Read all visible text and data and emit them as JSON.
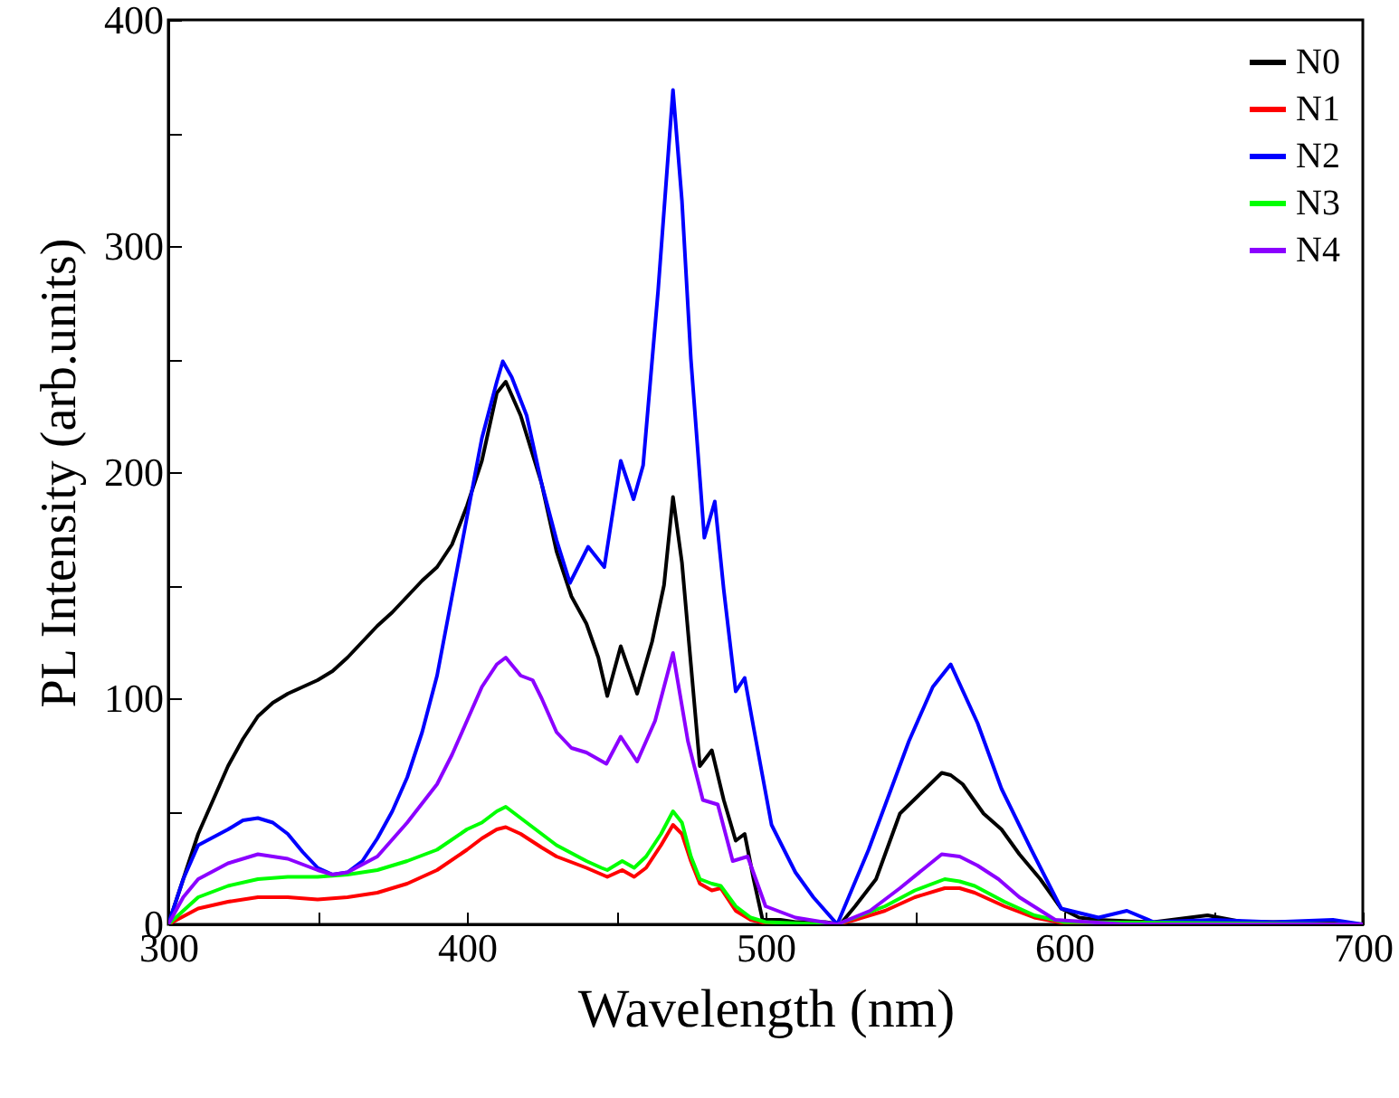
{
  "chart_data": {
    "type": "line",
    "xlabel": "Wavelength (nm)",
    "ylabel": "PL Intensity (arb.units)",
    "xlim": [
      300,
      700
    ],
    "ylim": [
      0,
      400
    ],
    "xticks": [
      300,
      {
        "value": 350,
        "label": null
      },
      400,
      {
        "value": 450,
        "label": null
      },
      500,
      {
        "value": 550,
        "label": null
      },
      600,
      {
        "value": 650,
        "label": null
      },
      700
    ],
    "yticks": [
      0,
      {
        "value": 50,
        "label": null
      },
      100,
      {
        "value": 150,
        "label": null
      },
      200,
      {
        "value": 250,
        "label": null
      },
      300,
      {
        "value": 350,
        "label": null
      },
      400
    ],
    "grid": false,
    "legend": "top right",
    "line_style": "solid",
    "marker": "none",
    "series": [
      {
        "name": "N0",
        "color": "#000000",
        "x": [
          300,
          305,
          310,
          315,
          320,
          325,
          330,
          335,
          340,
          345,
          350,
          355,
          360,
          365,
          370,
          375,
          380,
          385,
          390,
          395,
          400,
          405,
          410,
          413,
          418,
          425,
          430,
          435,
          440,
          444,
          447,
          451.5,
          457,
          462,
          466,
          469,
          472,
          475,
          478,
          482,
          486,
          490,
          493,
          496,
          499,
          505,
          510,
          520,
          525,
          530,
          537,
          545,
          552,
          559,
          562,
          566,
          573,
          579,
          585,
          592,
          599,
          605,
          611,
          630,
          648,
          660,
          680,
          700
        ],
        "values": [
          0,
          20,
          40,
          55,
          70,
          82,
          92,
          98,
          102,
          105,
          108,
          112,
          118,
          125,
          132,
          138,
          145,
          152,
          158,
          168,
          185,
          205,
          235,
          240,
          225,
          195,
          165,
          145,
          133,
          118,
          101,
          123,
          102,
          125,
          150,
          189,
          160,
          115,
          70,
          77,
          55,
          37,
          40,
          20,
          2,
          2,
          1,
          1,
          0,
          8,
          20,
          49,
          58,
          67,
          66,
          62,
          49,
          42,
          31,
          20,
          7,
          3,
          2,
          1,
          4,
          1,
          1,
          0
        ]
      },
      {
        "name": "N1",
        "color": "#ff0000",
        "x": [
          300,
          310,
          320,
          330,
          340,
          350,
          360,
          370,
          380,
          390,
          400,
          405,
          410,
          413,
          418,
          425,
          430,
          440,
          447,
          452,
          456,
          460,
          465,
          469,
          472,
          475,
          478,
          482,
          485,
          490,
          495,
          500,
          520,
          524,
          530,
          540,
          550,
          560,
          565,
          570,
          580,
          590,
          600,
          700
        ],
        "values": [
          0,
          7,
          10,
          12,
          12,
          11,
          12,
          14,
          18,
          24,
          33,
          38,
          42,
          43,
          40,
          34,
          30,
          25,
          21,
          24,
          21,
          25,
          35,
          44,
          40,
          28,
          18,
          15,
          16,
          6,
          2,
          0.5,
          0,
          0,
          2,
          6,
          12,
          16,
          16,
          14,
          8,
          3,
          0.5,
          0
        ]
      },
      {
        "name": "N2",
        "color": "#0000ff",
        "x": [
          300,
          305,
          310,
          320,
          325,
          330,
          335,
          340,
          345,
          350,
          355,
          360,
          365,
          370,
          375,
          380,
          385,
          390,
          395,
          400,
          405,
          410,
          412,
          415,
          420,
          425,
          430,
          434.5,
          440.6,
          446,
          451.5,
          455.8,
          459,
          464,
          469,
          472,
          475,
          479.5,
          483,
          486,
          490,
          493,
          496,
          502,
          510,
          516,
          524,
          534.5,
          548,
          556,
          562,
          571,
          579,
          589,
          599,
          611.5,
          621,
          630,
          650,
          670,
          690,
          700
        ],
        "values": [
          0,
          20,
          35,
          42,
          46,
          47,
          45,
          40,
          32,
          25,
          22,
          23,
          28,
          38,
          50,
          65,
          85,
          110,
          145,
          180,
          215,
          240,
          249,
          242,
          225,
          195,
          170,
          151,
          167,
          158,
          205,
          188,
          203,
          280,
          369,
          320,
          250,
          171,
          187,
          148,
          103,
          109,
          87,
          44,
          23,
          12,
          0,
          33,
          81,
          105,
          115,
          89,
          60,
          33,
          7,
          3,
          6,
          1,
          2,
          1,
          2,
          0
        ]
      },
      {
        "name": "N3",
        "color": "#00ff00",
        "x": [
          300,
          310,
          320,
          330,
          340,
          350,
          360,
          370,
          380,
          390,
          400,
          405,
          410,
          413,
          418,
          425,
          430,
          440,
          445,
          447,
          452,
          456,
          460,
          465,
          469,
          472,
          475,
          478,
          482,
          485,
          490,
          495,
          500,
          520,
          524,
          530,
          540,
          550,
          560,
          565,
          570,
          580,
          590,
          600,
          700
        ],
        "values": [
          0,
          12,
          17,
          20,
          21,
          21,
          22,
          24,
          28,
          33,
          42,
          45,
          50,
          52,
          47,
          40,
          35,
          28,
          25,
          24,
          28,
          25,
          30,
          40,
          50,
          45,
          30,
          20,
          18,
          17,
          8,
          3,
          1,
          0,
          0,
          3,
          8,
          15,
          20,
          19,
          17,
          10,
          4,
          1,
          0
        ]
      },
      {
        "name": "N4",
        "color": "#8b00ff",
        "x": [
          300,
          305,
          310,
          320,
          330,
          340,
          350,
          355,
          360,
          370,
          380,
          390,
          395,
          400,
          405,
          410,
          413,
          418,
          422,
          425,
          430,
          435,
          440,
          446.7,
          451.5,
          457,
          463,
          469,
          474,
          479,
          484,
          489,
          494,
          500,
          510,
          524,
          535,
          545,
          559,
          565,
          571,
          578,
          585,
          597,
          620,
          700
        ],
        "values": [
          0,
          12,
          20,
          27,
          31,
          29,
          24,
          22,
          23,
          30,
          45,
          62,
          75,
          90,
          105,
          115,
          118,
          110,
          108,
          100,
          85,
          78,
          76,
          71,
          83,
          72,
          90,
          120,
          81,
          55,
          53,
          28,
          30,
          8,
          3,
          0,
          6,
          16,
          31,
          30,
          26,
          20,
          12,
          2,
          0,
          0
        ]
      }
    ]
  }
}
